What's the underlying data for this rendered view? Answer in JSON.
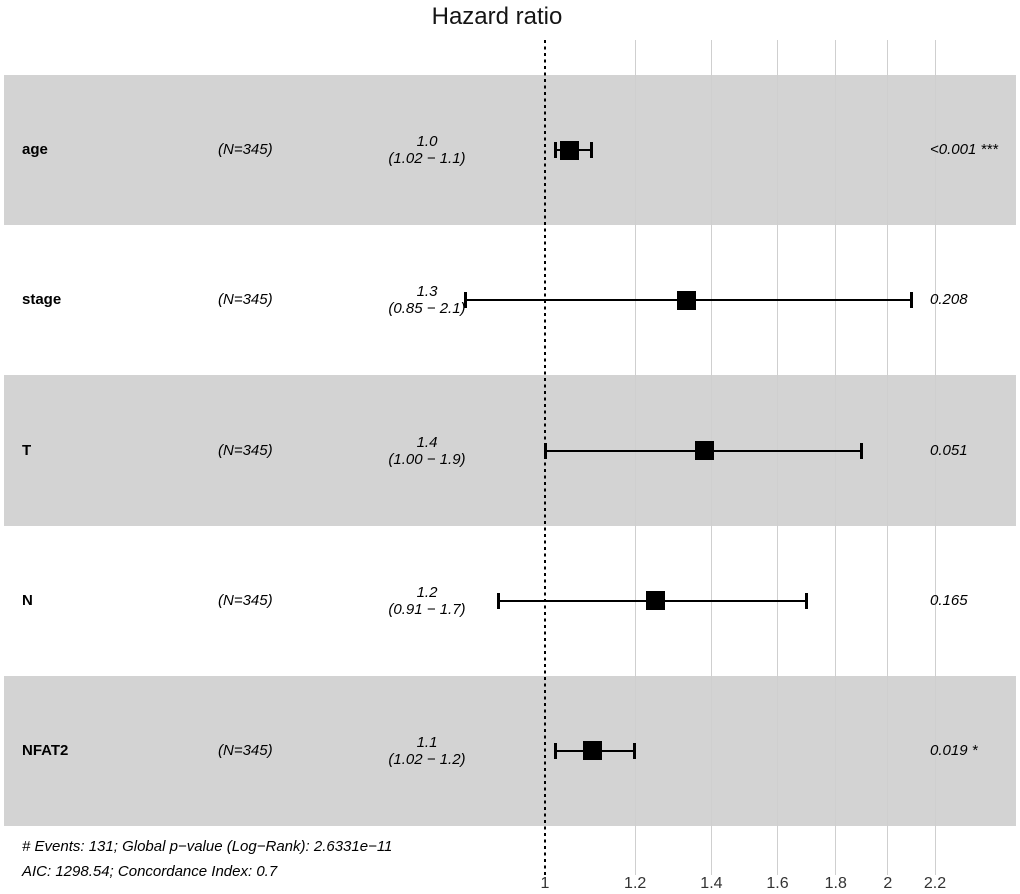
{
  "title": "Hazard ratio",
  "footer": {
    "line1": "# Events: 131; Global p−value (Log−Rank): 2.6331e−11",
    "line2": "AIC: 1298.54; Concordance Index: 0.7"
  },
  "colors": {
    "band": "#d3d3d3",
    "gridline": "#cfcfcf",
    "marker": "#000000",
    "reference_line": "#000000"
  },
  "chart_data": {
    "type": "forest",
    "title": "Hazard ratio",
    "orientation": "horizontal",
    "x_scale": "log",
    "x_ticks": [
      1,
      1.2,
      1.4,
      1.6,
      1.8,
      2,
      2.2
    ],
    "reference_line": 1,
    "rows": [
      {
        "label": "age",
        "n": "(N=345)",
        "estimate": "1.0",
        "ci": "(1.02 − 1.1)",
        "hr": 1.05,
        "ci_low": 1.02,
        "ci_high": 1.1,
        "p": "<0.001 ***",
        "shaded": true
      },
      {
        "label": "stage",
        "n": "(N=345)",
        "estimate": "1.3",
        "ci": "(0.85 − 2.1)",
        "hr": 1.33,
        "ci_low": 0.85,
        "ci_high": 2.1,
        "p": "0.208",
        "shaded": false
      },
      {
        "label": "T",
        "n": "(N=345)",
        "estimate": "1.4",
        "ci": "(1.00 − 1.9)",
        "hr": 1.38,
        "ci_low": 1.0,
        "ci_high": 1.9,
        "p": "0.051",
        "shaded": true
      },
      {
        "label": "N",
        "n": "(N=345)",
        "estimate": "1.2",
        "ci": "(0.91 − 1.7)",
        "hr": 1.25,
        "ci_low": 0.91,
        "ci_high": 1.7,
        "p": "0.165",
        "shaded": false
      },
      {
        "label": "NFAT2",
        "n": "(N=345)",
        "estimate": "1.1",
        "ci": "(1.02 − 1.2)",
        "hr": 1.1,
        "ci_low": 1.02,
        "ci_high": 1.2,
        "p": "0.019 *",
        "shaded": true
      }
    ]
  }
}
